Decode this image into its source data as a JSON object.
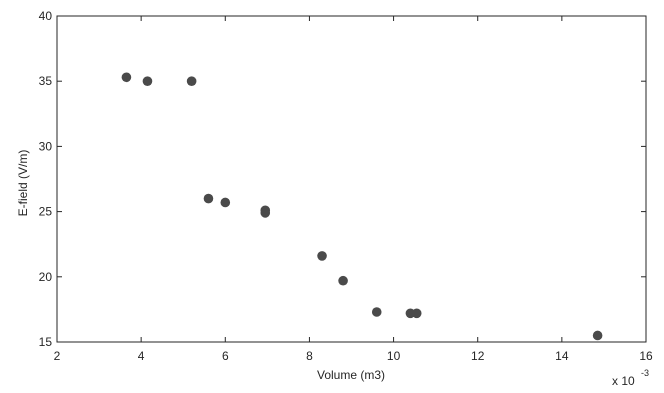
{
  "chart_data": {
    "type": "scatter",
    "title": "",
    "xlabel": "Volume (m3)",
    "ylabel": "E-field (V/m)",
    "x_exponent_label": "x 10",
    "x_exponent_power": "-3",
    "xlim": [
      2,
      16
    ],
    "ylim": [
      15,
      40
    ],
    "xticks": [
      2,
      4,
      6,
      8,
      10,
      12,
      14,
      16
    ],
    "yticks": [
      15,
      20,
      25,
      30,
      35,
      40
    ],
    "grid": false,
    "marker_color": "#4a4a4a",
    "axis_color": "#262626",
    "series": [
      {
        "points": [
          {
            "x": 3.65,
            "y": 35.3
          },
          {
            "x": 4.15,
            "y": 35.0
          },
          {
            "x": 5.2,
            "y": 35.0
          },
          {
            "x": 5.6,
            "y": 26.0
          },
          {
            "x": 6.0,
            "y": 25.7
          },
          {
            "x": 6.95,
            "y": 25.1
          },
          {
            "x": 6.95,
            "y": 24.9
          },
          {
            "x": 8.3,
            "y": 21.6
          },
          {
            "x": 8.8,
            "y": 19.7
          },
          {
            "x": 9.6,
            "y": 17.3
          },
          {
            "x": 10.4,
            "y": 17.2
          },
          {
            "x": 10.55,
            "y": 17.2
          },
          {
            "x": 14.85,
            "y": 15.5
          }
        ]
      }
    ]
  }
}
